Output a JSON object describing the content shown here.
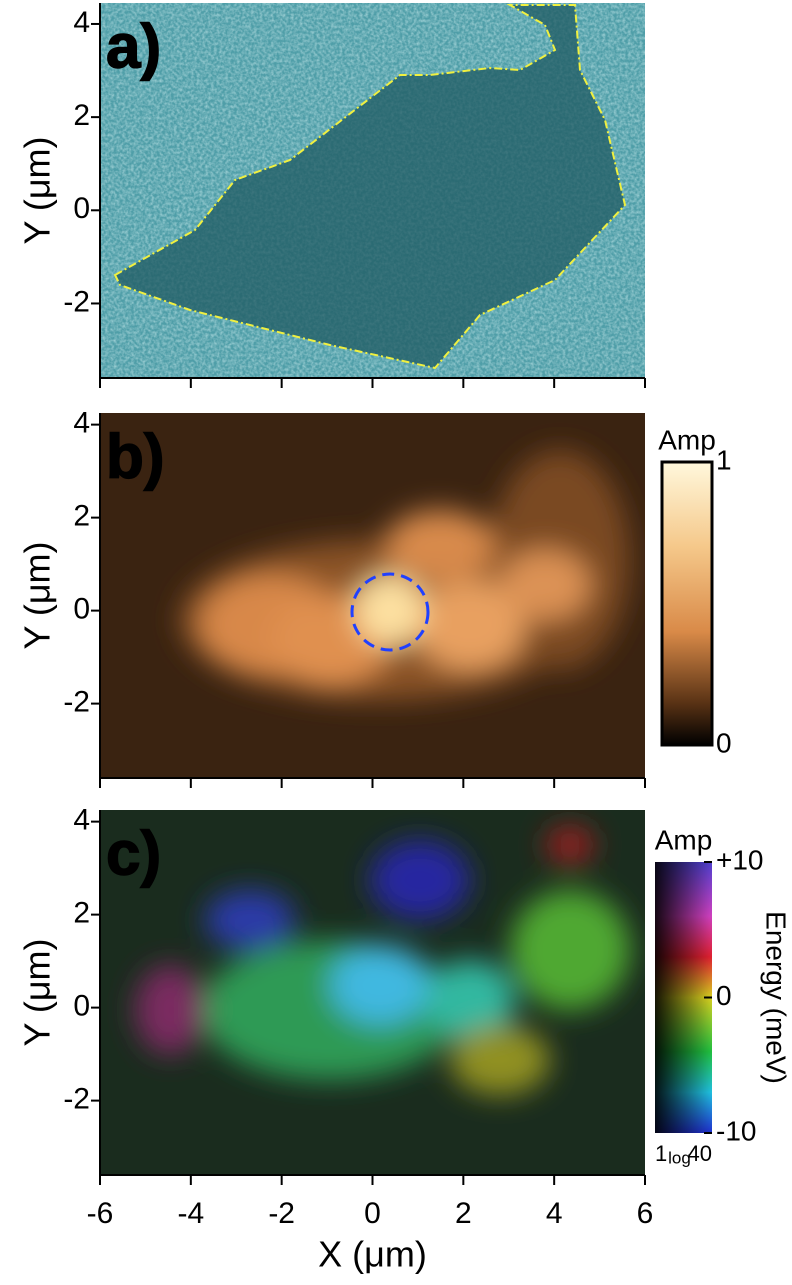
{
  "chart_data": [
    {
      "type": "image",
      "panel_label": "a)",
      "panel_label_color": "#000000",
      "ylabel": "Y (μm)",
      "xlim": [
        -6,
        6
      ],
      "ylim": [
        -3.6,
        4.45
      ],
      "yticks": [
        -2,
        0,
        2,
        4
      ]
    },
    {
      "type": "image",
      "panel_label": "b)",
      "panel_label_color": "#ffff00",
      "ylabel": "Y (μm)",
      "xlim": [
        -6,
        6
      ],
      "ylim": [
        -3.6,
        4.25
      ],
      "yticks": [
        -2,
        0,
        2,
        4
      ],
      "colorbar": {
        "title": "Amp",
        "lim": [
          0,
          1
        ],
        "ticks": [
          0,
          1
        ]
      }
    },
    {
      "type": "image",
      "panel_label": "c)",
      "panel_label_color": "#ffff00",
      "ylabel": "Y (μm)",
      "xlabel": "X (μm)",
      "xlim": [
        -6,
        6
      ],
      "xticks": [
        -6,
        -4,
        -2,
        0,
        2,
        4,
        6
      ],
      "ylim": [
        -3.6,
        4.25
      ],
      "yticks": [
        -2,
        0,
        2,
        4
      ],
      "colorbar": {
        "title": "Amp",
        "label": "Energy (meV)",
        "lim": [
          -10,
          10
        ],
        "ticks": [
          -10,
          0,
          {
            "value": 10,
            "label": "+10"
          }
        ],
        "amp_ticks": [
          1,
          40
        ],
        "amp_scale": "log"
      }
    }
  ]
}
